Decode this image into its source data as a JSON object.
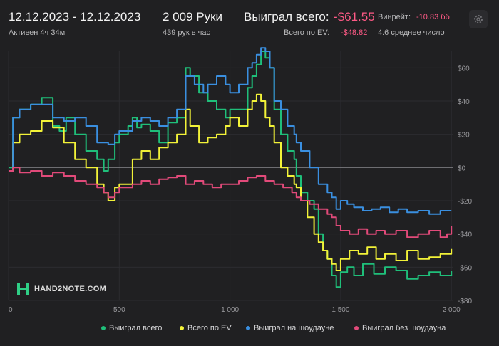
{
  "header": {
    "date_range": "12.12.2023 - 12.12.2023",
    "active_time": "Активен 4ч 34м",
    "hands_count": "2 009 Руки",
    "hands_per_hour": "439 рук в час",
    "won_total_label": "Выиграл всего:",
    "won_total_value": "-$61.55",
    "ev_label": "Всего по EV:",
    "ev_value": "-$48.82",
    "winrate_label": "Винрейт:",
    "winrate_value": "-10.83 бб",
    "avg_number": "4.6 среднее число"
  },
  "logo": {
    "text": "HAND2NOTE.COM"
  },
  "icons": {
    "settings": "gear-icon",
    "logo": "hand2note-logo-icon"
  },
  "colors": {
    "won_total": "#1fbf7a",
    "ev": "#f2f238",
    "showdown": "#3a8fe0",
    "non_showdown": "#e24a7a",
    "negative_text": "#ff5a86"
  },
  "chart_data": {
    "type": "line",
    "title": "",
    "xlabel": "",
    "ylabel": "",
    "xlim": [
      0,
      2009
    ],
    "ylim": [
      -80,
      70
    ],
    "x_ticks": [
      0,
      500,
      1000,
      1500,
      2000
    ],
    "x_tick_labels": [
      "0",
      "500",
      "1 000",
      "1 500",
      "2 000"
    ],
    "y_ticks": [
      60,
      40,
      20,
      0,
      -20,
      -40,
      -60,
      -80
    ],
    "y_tick_labels": [
      "$60",
      "$40",
      "$20",
      "$0",
      "-$20",
      "-$40",
      "-$60",
      "-$80"
    ],
    "grid": true,
    "legend_position": "bottom",
    "series": [
      {
        "name": "Выиграл всего",
        "color": "#1fbf7a",
        "x": [
          0,
          20,
          50,
          100,
          150,
          200,
          230,
          260,
          300,
          350,
          400,
          430,
          450,
          480,
          500,
          540,
          560,
          580,
          600,
          640,
          680,
          720,
          760,
          800,
          820,
          860,
          900,
          940,
          980,
          1000,
          1040,
          1080,
          1100,
          1120,
          1140,
          1160,
          1180,
          1200,
          1230,
          1260,
          1290,
          1300,
          1320,
          1350,
          1380,
          1400,
          1420,
          1440,
          1460,
          1480,
          1500,
          1530,
          1560,
          1600,
          1650,
          1700,
          1750,
          1800,
          1850,
          1900,
          1950,
          1980,
          2000
        ],
        "y": [
          0,
          30,
          35,
          38,
          42,
          25,
          22,
          30,
          20,
          10,
          5,
          -2,
          5,
          15,
          20,
          25,
          30,
          24,
          26,
          22,
          15,
          27,
          30,
          60,
          55,
          45,
          40,
          35,
          30,
          35,
          35,
          48,
          55,
          62,
          70,
          66,
          60,
          35,
          20,
          10,
          5,
          -5,
          -15,
          -20,
          -25,
          -40,
          -50,
          -55,
          -65,
          -72,
          -63,
          -60,
          -65,
          -58,
          -64,
          -60,
          -62,
          -67,
          -65,
          -63,
          -65,
          -65,
          -62
        ]
      },
      {
        "name": "Всего по EV",
        "color": "#f2f238",
        "x": [
          0,
          20,
          50,
          100,
          150,
          200,
          250,
          300,
          350,
          400,
          430,
          450,
          480,
          500,
          560,
          600,
          640,
          680,
          720,
          760,
          800,
          820,
          860,
          900,
          940,
          980,
          1000,
          1040,
          1080,
          1100,
          1120,
          1140,
          1160,
          1180,
          1200,
          1230,
          1260,
          1290,
          1300,
          1320,
          1350,
          1380,
          1400,
          1420,
          1440,
          1460,
          1480,
          1500,
          1540,
          1580,
          1620,
          1660,
          1700,
          1750,
          1800,
          1850,
          1900,
          1950,
          2000
        ],
        "y": [
          -2,
          15,
          20,
          22,
          28,
          24,
          15,
          5,
          0,
          -10,
          -15,
          -20,
          -12,
          -10,
          5,
          10,
          5,
          12,
          15,
          20,
          35,
          25,
          15,
          18,
          20,
          25,
          30,
          25,
          35,
          40,
          44,
          40,
          30,
          25,
          15,
          0,
          -5,
          -10,
          -12,
          -20,
          -30,
          -40,
          -45,
          -50,
          -55,
          -58,
          -62,
          -55,
          -50,
          -52,
          -48,
          -55,
          -52,
          -56,
          -50,
          -55,
          -54,
          -52,
          -49
        ]
      },
      {
        "name": "Выиграл на шоудауне",
        "color": "#3a8fe0",
        "x": [
          0,
          20,
          50,
          100,
          150,
          200,
          250,
          300,
          350,
          400,
          450,
          480,
          500,
          560,
          600,
          640,
          680,
          720,
          760,
          800,
          840,
          880,
          900,
          940,
          980,
          1000,
          1040,
          1080,
          1100,
          1120,
          1140,
          1160,
          1180,
          1200,
          1230,
          1260,
          1290,
          1300,
          1320,
          1360,
          1400,
          1440,
          1460,
          1480,
          1500,
          1530,
          1560,
          1600,
          1640,
          1680,
          1720,
          1760,
          1800,
          1850,
          1900,
          1950,
          2000
        ],
        "y": [
          -2,
          30,
          35,
          38,
          38,
          30,
          28,
          30,
          25,
          15,
          14,
          20,
          22,
          28,
          30,
          28,
          25,
          30,
          35,
          55,
          50,
          45,
          50,
          55,
          50,
          45,
          50,
          60,
          63,
          68,
          72,
          70,
          60,
          40,
          35,
          25,
          20,
          15,
          10,
          0,
          -10,
          -15,
          -18,
          -25,
          -20,
          -22,
          -24,
          -26,
          -25,
          -24,
          -27,
          -25,
          -27,
          -26,
          -28,
          -26,
          -26
        ]
      },
      {
        "name": "Выиграл без шоудауна",
        "color": "#e24a7a",
        "x": [
          0,
          20,
          50,
          100,
          150,
          200,
          250,
          300,
          350,
          400,
          430,
          450,
          480,
          500,
          560,
          600,
          640,
          680,
          720,
          760,
          800,
          840,
          880,
          920,
          960,
          1000,
          1040,
          1080,
          1120,
          1160,
          1200,
          1240,
          1280,
          1300,
          1320,
          1360,
          1400,
          1440,
          1460,
          1480,
          1500,
          1540,
          1580,
          1620,
          1660,
          1700,
          1750,
          1800,
          1850,
          1900,
          1950,
          1980,
          2000
        ],
        "y": [
          -2,
          0,
          -3,
          -2,
          -5,
          -3,
          -5,
          -8,
          -10,
          -12,
          -15,
          -18,
          -15,
          -12,
          -10,
          -8,
          -10,
          -7,
          -6,
          -5,
          -10,
          -8,
          -10,
          -12,
          -10,
          -10,
          -8,
          -6,
          -5,
          -8,
          -10,
          -12,
          -15,
          -18,
          -20,
          -22,
          -25,
          -28,
          -30,
          -35,
          -38,
          -40,
          -37,
          -40,
          -38,
          -40,
          -38,
          -42,
          -40,
          -38,
          -42,
          -40,
          -35
        ]
      }
    ]
  },
  "legend": [
    {
      "label": "Выиграл всего",
      "color": "#1fbf7a"
    },
    {
      "label": "Всего по EV",
      "color": "#f2f238"
    },
    {
      "label": "Выиграл на шоудауне",
      "color": "#3a8fe0"
    },
    {
      "label": "Выиграл без шоудауна",
      "color": "#e24a7a"
    }
  ]
}
